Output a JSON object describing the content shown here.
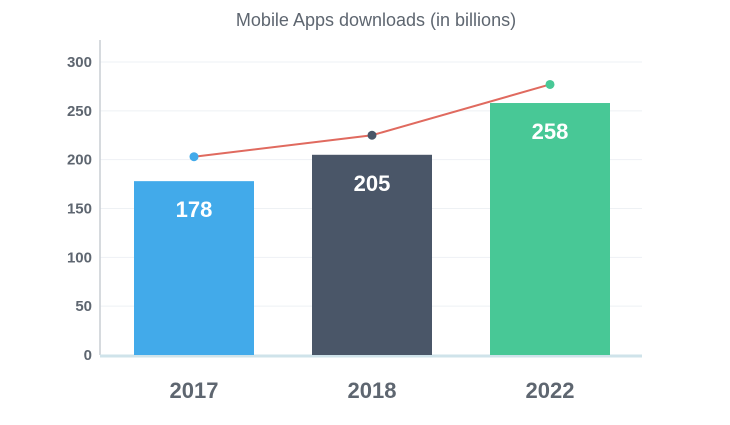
{
  "chart_data": {
    "type": "bar",
    "title": "Mobile Apps downloads (in billions)",
    "categories": [
      "2017",
      "2018",
      "2022"
    ],
    "values": [
      178,
      205,
      258
    ],
    "bar_colors": [
      "#42aaea",
      "#4a5668",
      "#48c896"
    ],
    "line_series": {
      "values": [
        203,
        225,
        277
      ],
      "color": "#e06a5f",
      "marker_colors": [
        "#42aaea",
        "#4a5668",
        "#48c896"
      ]
    },
    "ylim": [
      0,
      300
    ],
    "yticks": [
      0,
      50,
      100,
      150,
      200,
      250,
      300
    ],
    "grid": true,
    "legend": "none"
  }
}
